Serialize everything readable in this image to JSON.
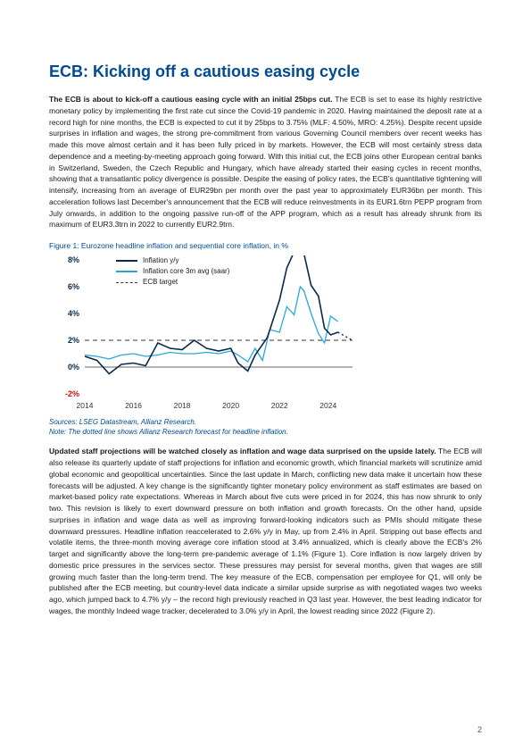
{
  "page": {
    "title": "ECB: Kicking off a cautious easing cycle",
    "page_number": "2"
  },
  "para1": {
    "lead": "The ECB is about to kick-off a cautious easing cycle with an initial 25bps cut.",
    "rest": " The ECB is set to ease its highly restrictive monetary policy by implementing the first rate cut since the Covid-19 pandemic in 2020. Having maintained the deposit rate at a record high for nine months, the ECB is expected to cut it by 25bps to 3.75% (MLF: 4.50%, MRO: 4.25%). Despite recent upside surprises in inflation and wages, the strong pre-commitment from various Governing Council members over recent weeks has made this move almost certain and it has been fully priced in by markets. However, the ECB will most certainly stress data dependence and a meeting-by-meeting approach going forward. With this initial cut, the ECB joins other European central banks in Switzerland, Sweden, the Czech Republic and Hungary, which have already started their easing cycles in recent months, showing that a transatlantic policy divergence is possible. Despite the easing of policy rates, the ECB's quantitative tightening will intensify, increasing from an average of EUR29bn per month over the past year to approximately EUR36bn per month. This acceleration follows last December's announcement that the ECB will reduce reinvestments in its EUR1.6trn PEPP program from July onwards, in addition to the ongoing passive run-off of the APP program, which as a result has already shrunk from its maximum of EUR3.3trn in 2022 to currently EUR2.9trn."
  },
  "figure1": {
    "title": "Figure 1: Eurozone headline inflation and sequential core inflation, in %",
    "legend": {
      "series1": "Inflation y/y",
      "series2": "Inflation core 3m avg (saar)",
      "series3": "ECB target"
    },
    "yticks": [
      "8%",
      "6%",
      "4%",
      "2%",
      "0%",
      "-2%"
    ],
    "xticks": [
      "2014",
      "2016",
      "2018",
      "2020",
      "2022",
      "2024"
    ],
    "colors": {
      "series1": "#0a2a4a",
      "series2": "#2aa7d4",
      "target": "#333333",
      "axis": "#333333",
      "neg": "#c01119"
    },
    "ylim": [
      -2,
      8
    ],
    "xlim": [
      2014,
      2025
    ],
    "target_value": 2,
    "series1_data": [
      [
        2014.0,
        0.8
      ],
      [
        2014.5,
        0.5
      ],
      [
        2015.0,
        -0.5
      ],
      [
        2015.5,
        0.2
      ],
      [
        2016.0,
        0.3
      ],
      [
        2016.5,
        0.1
      ],
      [
        2017.0,
        1.8
      ],
      [
        2017.5,
        1.4
      ],
      [
        2018.0,
        1.3
      ],
      [
        2018.5,
        2.0
      ],
      [
        2019.0,
        1.4
      ],
      [
        2019.5,
        1.2
      ],
      [
        2020.0,
        1.4
      ],
      [
        2020.3,
        0.3
      ],
      [
        2020.7,
        -0.3
      ],
      [
        2021.0,
        0.9
      ],
      [
        2021.5,
        2.2
      ],
      [
        2022.0,
        5.0
      ],
      [
        2022.3,
        7.4
      ],
      [
        2022.6,
        8.6
      ],
      [
        2022.85,
        10.6
      ],
      [
        2023.0,
        8.5
      ],
      [
        2023.3,
        6.1
      ],
      [
        2023.6,
        5.3
      ],
      [
        2023.85,
        2.9
      ],
      [
        2024.1,
        2.4
      ],
      [
        2024.4,
        2.6
      ],
      [
        2024.7,
        2.3
      ],
      [
        2025.0,
        2.0
      ]
    ],
    "series2_data": [
      [
        2014.0,
        0.9
      ],
      [
        2014.5,
        0.8
      ],
      [
        2015.0,
        0.6
      ],
      [
        2015.5,
        0.9
      ],
      [
        2016.0,
        1.0
      ],
      [
        2016.5,
        0.8
      ],
      [
        2017.0,
        0.9
      ],
      [
        2017.5,
        1.1
      ],
      [
        2018.0,
        1.0
      ],
      [
        2018.5,
        1.0
      ],
      [
        2019.0,
        1.1
      ],
      [
        2019.5,
        1.0
      ],
      [
        2020.0,
        1.2
      ],
      [
        2020.3,
        0.9
      ],
      [
        2020.7,
        0.4
      ],
      [
        2021.0,
        1.4
      ],
      [
        2021.3,
        0.5
      ],
      [
        2021.6,
        2.8
      ],
      [
        2022.0,
        2.6
      ],
      [
        2022.3,
        4.5
      ],
      [
        2022.6,
        3.9
      ],
      [
        2022.85,
        6.0
      ],
      [
        2023.0,
        5.7
      ],
      [
        2023.3,
        4.0
      ],
      [
        2023.6,
        2.5
      ],
      [
        2023.85,
        1.8
      ],
      [
        2024.1,
        3.8
      ],
      [
        2024.4,
        3.4
      ]
    ]
  },
  "sources": {
    "line1": "Sources: LSEG Datastream, Allianz Research.",
    "line2": "Note: The dotted line shows Allianz Research forecast for headline inflation."
  },
  "para2": {
    "lead": "Updated staff projections will be watched closely as inflation and wage data surprised on the upside lately.",
    "rest": " The ECB will also release its quarterly update of staff projections for inflation and economic growth, which financial markets will scrutinize amid global economic and geopolitical uncertainties. Since the last update in March, conflicting new data make it uncertain how these forecasts will be adjusted. A key change is the significantly tighter monetary policy environment as staff estimates are based on market-based policy rate expectations. Whereas in March about five cuts were priced in for 2024, this has now shrunk to only two. This revision is likely to exert downward pressure on both inflation and growth forecasts. On the other hand, upside surprises in inflation and wage data as well as improving forward-looking indicators such as PMIs should mitigate these downward pressures. Headline inflation reaccelerated to 2.6% y/y in May, up from 2.4% in April. Stripping out base effects and volatile items, the three-month moving average core inflation stood at 3.4% annualized, which is clearly above the ECB's 2% target and significantly above the long-term pre-pandemic average of 1.1% (Figure 1). Core inflation is now largely driven by domestic price pressures in the services sector. These pressures may persist for several months, given that wages are still growing much faster than the long-term trend. The key measure of the ECB, compensation per employee for Q1, will only be published after the ECB meeting, but country-level data indicate a similar upside surprise as with negotiated wages two weeks ago, which jumped back to 4.7% y/y – the record high previously reached in Q3 last year. However, the best leading indicator for wages, the monthly Indeed wage tracker, decelerated to 3.0% y/y in April, the lowest reading since 2022 (Figure 2)."
  }
}
